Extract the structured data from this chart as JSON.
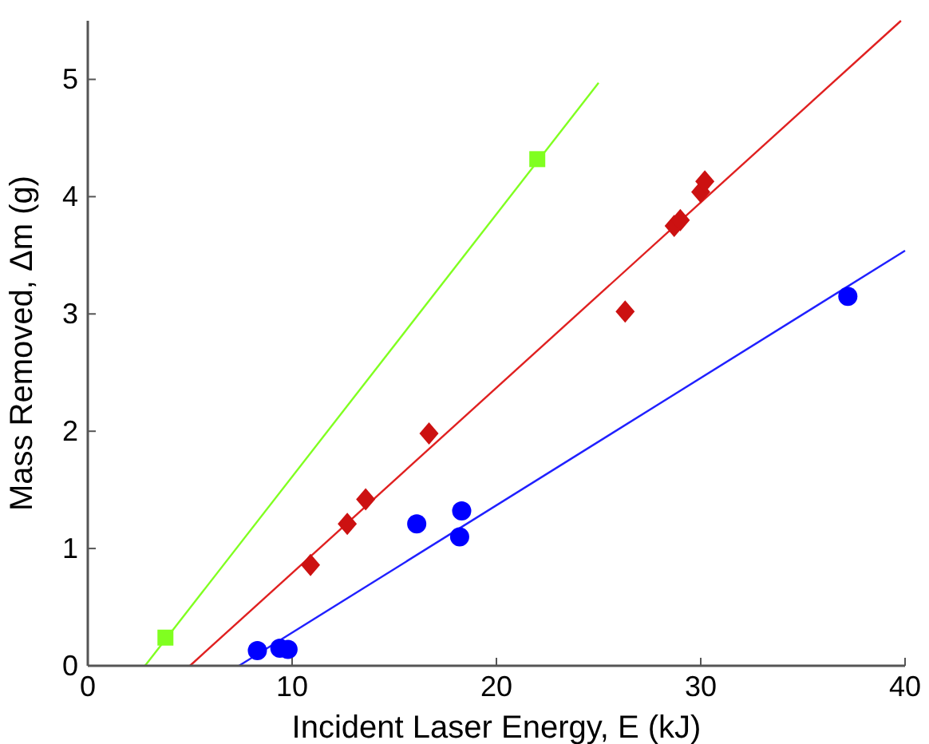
{
  "chart_data": {
    "type": "scatter",
    "xlabel": "Incident Laser Energy, E (kJ)",
    "ylabel": "Mass Removed, Δm (g)",
    "xlim": [
      0,
      40
    ],
    "ylim": [
      0,
      5.5
    ],
    "xticks": [
      0,
      10,
      20,
      30,
      40
    ],
    "yticks": [
      0,
      1,
      2,
      3,
      4,
      5
    ],
    "grid": false,
    "series": [
      {
        "type": "line",
        "color": "#80ff20",
        "marker": "none",
        "x": [
          2.8,
          25.0
        ],
        "values": [
          0,
          4.97
        ]
      },
      {
        "type": "line",
        "color": "#e02020",
        "marker": "none",
        "x": [
          5.0,
          39.8
        ],
        "values": [
          0,
          5.5
        ]
      },
      {
        "type": "line",
        "color": "#2020ff",
        "marker": "none",
        "x": [
          7.4,
          40
        ],
        "values": [
          0,
          3.54
        ]
      },
      {
        "color": "#80ff20",
        "marker": "square",
        "x": [
          3.8,
          22.0
        ],
        "values": [
          0.24,
          4.32
        ]
      },
      {
        "color": "#cc1111",
        "marker": "diamond",
        "x": [
          10.9,
          12.7,
          13.6,
          16.7,
          26.3,
          28.7,
          29.0,
          30.0,
          30.2
        ],
        "values": [
          0.86,
          1.21,
          1.42,
          1.98,
          3.02,
          3.75,
          3.8,
          4.04,
          4.13
        ]
      },
      {
        "color": "#0000ff",
        "marker": "circle",
        "x": [
          8.3,
          9.4,
          9.8,
          16.1,
          18.3,
          18.2,
          37.2
        ],
        "values": [
          0.13,
          0.15,
          0.14,
          1.21,
          1.32,
          1.1,
          3.15
        ]
      }
    ]
  }
}
